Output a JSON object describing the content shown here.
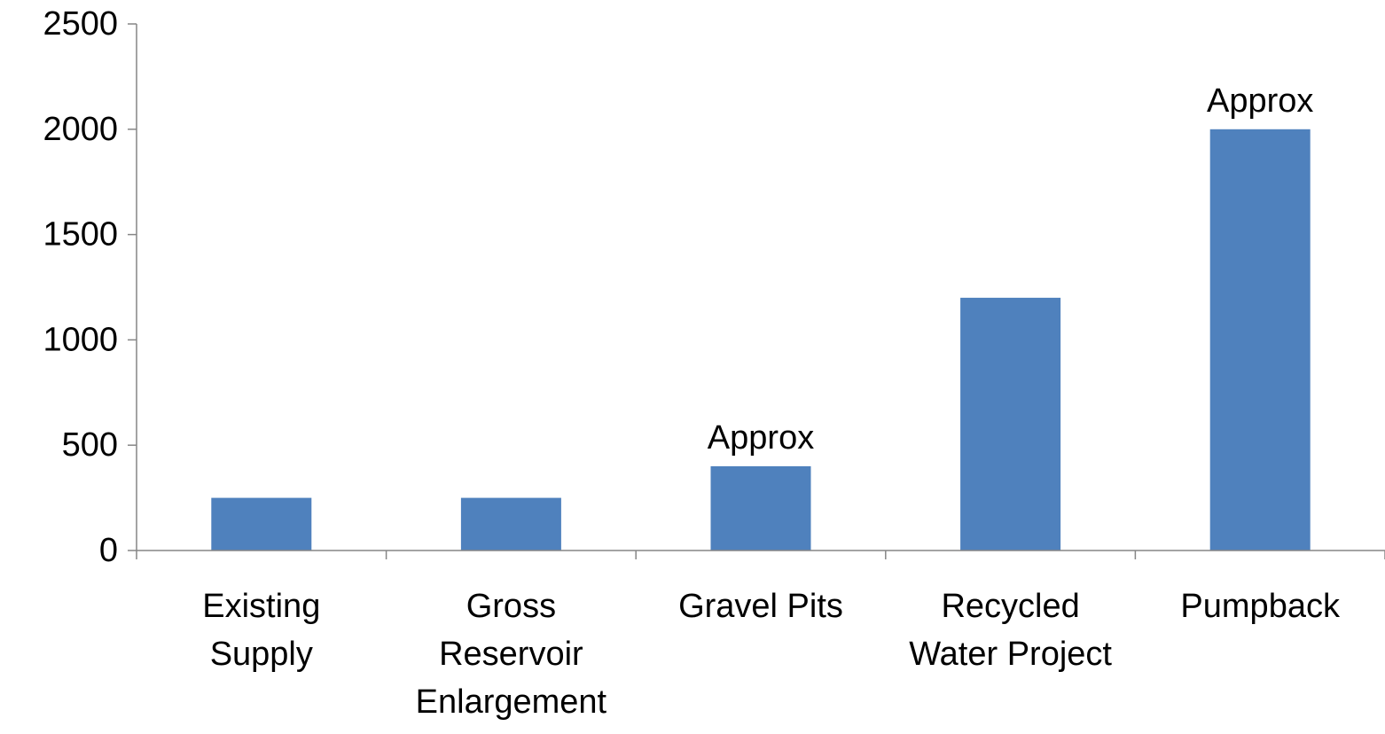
{
  "chart_data": {
    "type": "bar",
    "title": "",
    "xlabel": "",
    "ylabel": "",
    "categories": [
      [
        "Existing",
        "Supply"
      ],
      [
        "Gross",
        "Reservoir",
        "Enlargement"
      ],
      [
        "Gravel Pits"
      ],
      [
        "Recycled",
        "Water Project"
      ],
      [
        "Pumpback"
      ]
    ],
    "values": [
      250,
      250,
      400,
      1200,
      2000
    ],
    "annotations": [
      "",
      "",
      "Approx",
      "",
      "Approx"
    ],
    "ylim": [
      0,
      2500
    ],
    "yticks": [
      0,
      500,
      1000,
      1500,
      2000,
      2500
    ],
    "grid": false,
    "legend": "none",
    "bar_color": "#4F81BD",
    "axis_color": "#868686"
  }
}
